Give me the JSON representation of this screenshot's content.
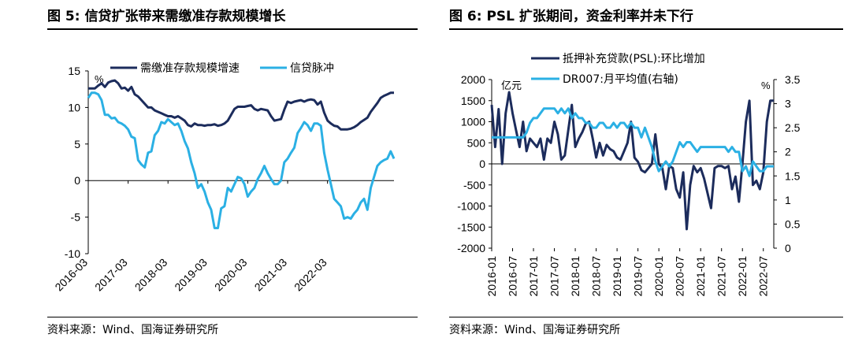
{
  "charts_meta": [
    {
      "title": "图 5:  信贷扩张带来需缴准存款规模增长",
      "source": "资料来源：Wind、国海证券研究所"
    },
    {
      "title": "图 6:  PSL 扩张期间，资金利率并未下行",
      "source": "资料来源：Wind、国海证券研究所"
    }
  ],
  "colors": {
    "dark": "#1c2c5c",
    "light": "#2bb0e4"
  },
  "chart_data": [
    {
      "type": "line",
      "title": "",
      "x_tick_labels": [
        "2016-03",
        "2017-03",
        "2018-03",
        "2019-03",
        "2020-03",
        "2021-03",
        "2022-03"
      ],
      "x_tick_index": [
        0,
        12,
        24,
        36,
        48,
        60,
        72
      ],
      "y_unit": "%",
      "ylim": [
        -10,
        15
      ],
      "y_ticks": [
        "15",
        "10",
        "5",
        "0",
        "-5",
        "-10"
      ],
      "y_tick_values": [
        15,
        10,
        5,
        0,
        -5,
        -10
      ],
      "legend_position": "top",
      "series": [
        {
          "name": "需缴准存款规模增速",
          "color": "#1c2c5c",
          "values": [
            12.6,
            12.6,
            12.6,
            13.0,
            13.3,
            12.8,
            13.4,
            13.6,
            13.7,
            13.3,
            12.6,
            12.7,
            12.3,
            12.8,
            11.8,
            11.5,
            11.0,
            10.5,
            10.0,
            10.0,
            9.6,
            9.4,
            9.2,
            9.0,
            8.8,
            8.8,
            8.6,
            8.8,
            8.5,
            8.2,
            7.6,
            7.4,
            7.8,
            7.6,
            7.6,
            7.5,
            7.6,
            7.6,
            7.7,
            7.5,
            7.6,
            7.8,
            8.2,
            9.0,
            9.8,
            10.1,
            10.1,
            10.1,
            10.2,
            10.3,
            9.8,
            9.6,
            9.8,
            9.7,
            9.6,
            8.8,
            8.2,
            8.3,
            8.4,
            9.7,
            10.8,
            10.6,
            10.8,
            10.9,
            11.0,
            10.8,
            11.0,
            11.1,
            11.0,
            10.4,
            10.8,
            9.3,
            8.2,
            7.8,
            7.5,
            7.4,
            7.0,
            7.0,
            7.0,
            7.1,
            7.3,
            7.6,
            8.0,
            8.3,
            8.6,
            9.4,
            10.0,
            10.6,
            11.3,
            11.6,
            11.8,
            12.0,
            12.0
          ]
        },
        {
          "name": "信贷脉冲",
          "color": "#2bb0e4",
          "values": [
            11.3,
            12.0,
            12.0,
            11.8,
            11.0,
            9.0,
            9.0,
            8.5,
            8.6,
            8.0,
            7.8,
            7.5,
            7.0,
            6.0,
            5.8,
            2.8,
            2.2,
            1.8,
            3.8,
            4.0,
            6.2,
            6.8,
            8.0,
            7.8,
            8.4,
            8.0,
            7.6,
            7.8,
            6.8,
            5.4,
            4.4,
            2.5,
            1.0,
            -1.0,
            -0.5,
            -1.5,
            -3.0,
            -4.0,
            -6.5,
            -6.5,
            -3.8,
            -3.5,
            -1.0,
            -1.5,
            -0.5,
            0.5,
            0.3,
            -0.5,
            -2.2,
            -1.5,
            -1.0,
            0.2,
            1.0,
            2.0,
            1.0,
            0.2,
            -0.5,
            -0.5,
            0.0,
            2.5,
            3.0,
            3.8,
            4.5,
            6.5,
            7.2,
            8.0,
            7.6,
            6.8,
            7.8,
            7.8,
            7.5,
            3.8,
            1.5,
            -0.5,
            -2.5,
            -3.0,
            -3.5,
            -5.2,
            -5.0,
            -5.2,
            -4.5,
            -4.0,
            -3.0,
            -2.5,
            -4.0,
            -1.0,
            0.5,
            2.0,
            2.5,
            2.8,
            3.0,
            4.0,
            3.0
          ]
        }
      ]
    },
    {
      "type": "line",
      "title": "",
      "x_tick_labels": [
        "2016-01",
        "2016-07",
        "2017-01",
        "2017-07",
        "2018-01",
        "2018-07",
        "2019-01",
        "2019-07",
        "2020-01",
        "2020-07",
        "2021-01",
        "2021-07",
        "2022-01",
        "2022-07"
      ],
      "x_tick_index": [
        0,
        6,
        12,
        18,
        24,
        30,
        36,
        42,
        48,
        54,
        60,
        66,
        72,
        78
      ],
      "y_unit_left": "亿元",
      "y_unit_right": "%",
      "ylim_left": [
        -2000,
        2000
      ],
      "ylim_right": [
        0,
        3.5
      ],
      "y_ticks_left": [
        "2000",
        "1500",
        "1000",
        "500",
        "0",
        "-500",
        "-1000",
        "-1500",
        "-2000"
      ],
      "y_tick_values_left": [
        2000,
        1500,
        1000,
        500,
        0,
        -500,
        -1000,
        -1500,
        -2000
      ],
      "y_ticks_right": [
        "3.5",
        "3",
        "2.5",
        "2",
        "1.5",
        "1",
        "0.5",
        "0"
      ],
      "y_tick_values_right": [
        3.5,
        3,
        2.5,
        2,
        1.5,
        1,
        0.5,
        0
      ],
      "legend_position": "top",
      "series": [
        {
          "name": "抵押补充贷款(PSL):环比增加",
          "axis": "left",
          "color": "#1c2c5c",
          "values": [
            1400,
            400,
            1300,
            0,
            1200,
            1700,
            1200,
            800,
            400,
            1000,
            300,
            600,
            500,
            400,
            600,
            100,
            600,
            500,
            1000,
            700,
            100,
            200,
            800,
            1400,
            400,
            600,
            750,
            950,
            1000,
            600,
            150,
            500,
            200,
            450,
            350,
            300,
            150,
            100,
            300,
            500,
            1000,
            150,
            50,
            -150,
            -200,
            -100,
            0,
            700,
            0,
            -100,
            -600,
            -50,
            -100,
            -600,
            -800,
            -200,
            -1550,
            -500,
            -50,
            -200,
            -100,
            -350,
            -700,
            -1050,
            -100,
            -50,
            -50,
            -100,
            -50,
            -600,
            -300,
            -900,
            0,
            1000,
            1500,
            -500,
            -400,
            -600,
            -200,
            1000,
            1500,
            1500
          ]
        },
        {
          "name": "DR007:月平均值(右轴)",
          "axis": "right",
          "color": "#2bb0e4",
          "values": [
            2.3,
            2.3,
            2.3,
            2.3,
            2.3,
            2.3,
            2.3,
            2.3,
            2.3,
            2.3,
            2.4,
            2.6,
            2.7,
            2.7,
            2.8,
            2.9,
            2.9,
            2.9,
            2.9,
            2.8,
            2.9,
            2.8,
            2.9,
            2.7,
            2.8,
            2.7,
            2.7,
            2.6,
            2.6,
            2.5,
            2.5,
            2.6,
            2.6,
            2.5,
            2.5,
            2.6,
            2.5,
            2.6,
            2.6,
            2.5,
            2.6,
            2.5,
            2.5,
            2.3,
            2.5,
            2.3,
            2.1,
            1.8,
            1.6,
            1.7,
            1.8,
            1.7,
            1.8,
            2.0,
            2.2,
            2.1,
            2.2,
            2.2,
            2.1,
            2.0,
            2.1,
            2.1,
            2.1,
            2.1,
            2.1,
            2.1,
            2.1,
            2.1,
            2.0,
            2.1,
            2.0,
            2.0,
            1.6,
            1.7,
            1.5,
            1.8,
            1.7,
            1.6,
            1.6,
            1.7,
            1.7,
            1.7
          ]
        }
      ]
    }
  ]
}
